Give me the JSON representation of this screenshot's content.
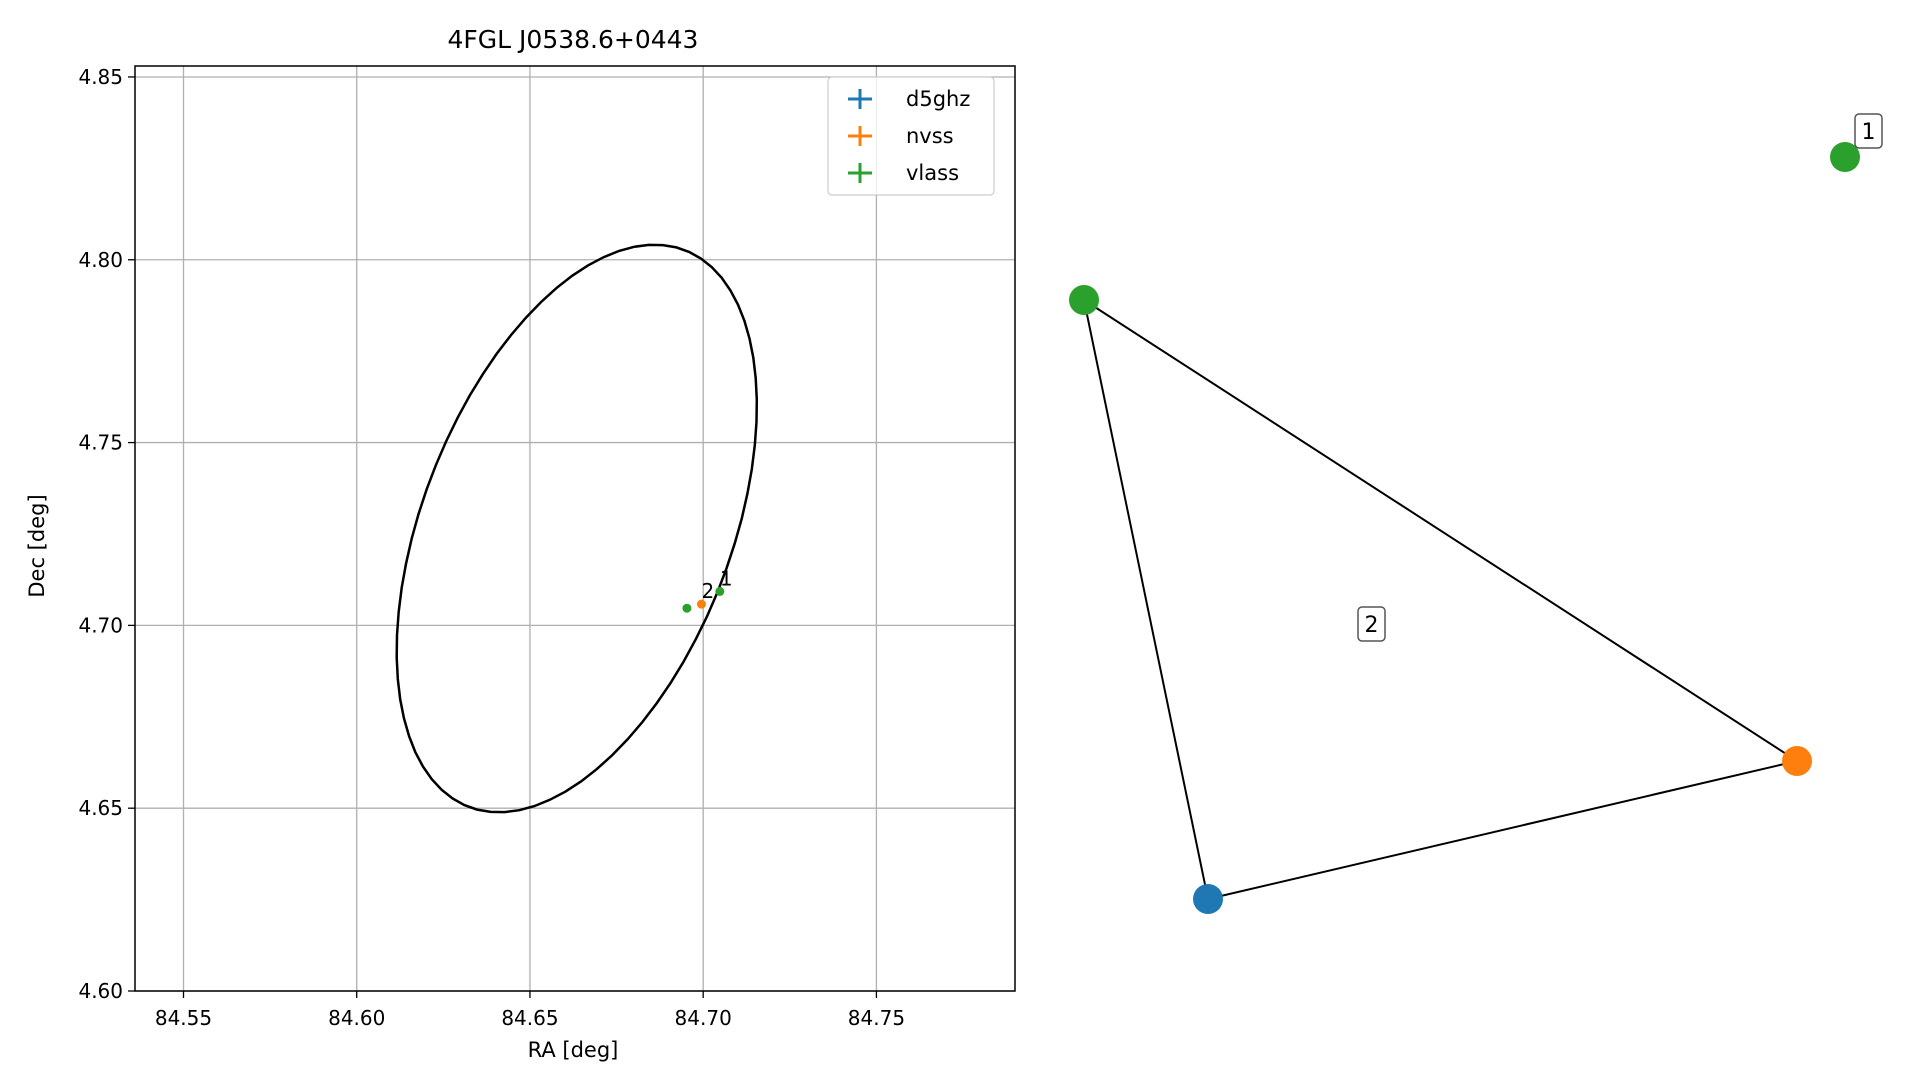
{
  "colors": {
    "d5ghz": "#1f77b4",
    "nvss": "#ff7f0e",
    "vlass": "#2ca02c",
    "grid": "#b0b0b0",
    "ellipse": "#000000"
  },
  "chart_data": [
    {
      "type": "scatter",
      "title": "4FGL J0538.6+0443",
      "xlabel": "RA [deg]",
      "ylabel": "Dec [deg]",
      "xlim": [
        84.536,
        84.79
      ],
      "ylim": [
        4.6,
        4.853
      ],
      "xticks": [
        84.55,
        84.6,
        84.65,
        84.7,
        84.75
      ],
      "xtick_labels": [
        "84.55",
        "84.60",
        "84.65",
        "84.70",
        "84.75"
      ],
      "yticks": [
        4.6,
        4.65,
        4.7,
        4.75,
        4.8,
        4.85
      ],
      "ytick_labels": [
        "4.60",
        "4.65",
        "4.70",
        "4.75",
        "4.80",
        "4.85"
      ],
      "grid": true,
      "legend": {
        "placement": "top-right",
        "entries": [
          {
            "label": "d5ghz",
            "color_key": "d5ghz"
          },
          {
            "label": "nvss",
            "color_key": "nvss"
          },
          {
            "label": "vlass",
            "color_key": "vlass"
          }
        ]
      },
      "ellipse": {
        "center_ra": 84.6635,
        "center_dec": 4.7265,
        "semi_major_deg": 0.0823,
        "semi_minor_deg": 0.0442,
        "rotation_deg": 66.8
      },
      "series": [
        {
          "name": "nvss",
          "points": [
            {
              "ra": 84.6995,
              "dec": 4.7058
            }
          ]
        },
        {
          "name": "vlass",
          "points": [
            {
              "ra": 84.6953,
              "dec": 4.7047
            },
            {
              "ra": 84.7048,
              "dec": 4.7093
            }
          ]
        }
      ],
      "annotations": [
        {
          "text": "2",
          "ra": 84.6995,
          "dec": 4.7058
        },
        {
          "text": "1",
          "ra": 84.7048,
          "dec": 4.7093
        }
      ]
    },
    {
      "type": "graph",
      "nodes": [
        {
          "id": "vlass-a",
          "series": "vlass"
        },
        {
          "id": "nvss-a",
          "series": "nvss"
        },
        {
          "id": "d5ghz-a",
          "series": "d5ghz"
        },
        {
          "id": "vlass-b",
          "series": "vlass"
        }
      ],
      "edges": [
        [
          "vlass-a",
          "nvss-a"
        ],
        [
          "nvss-a",
          "d5ghz-a"
        ],
        [
          "d5ghz-a",
          "vlass-a"
        ]
      ],
      "labels": [
        {
          "text": "2",
          "group": "triangle"
        },
        {
          "text": "1",
          "group": "single"
        }
      ]
    }
  ]
}
